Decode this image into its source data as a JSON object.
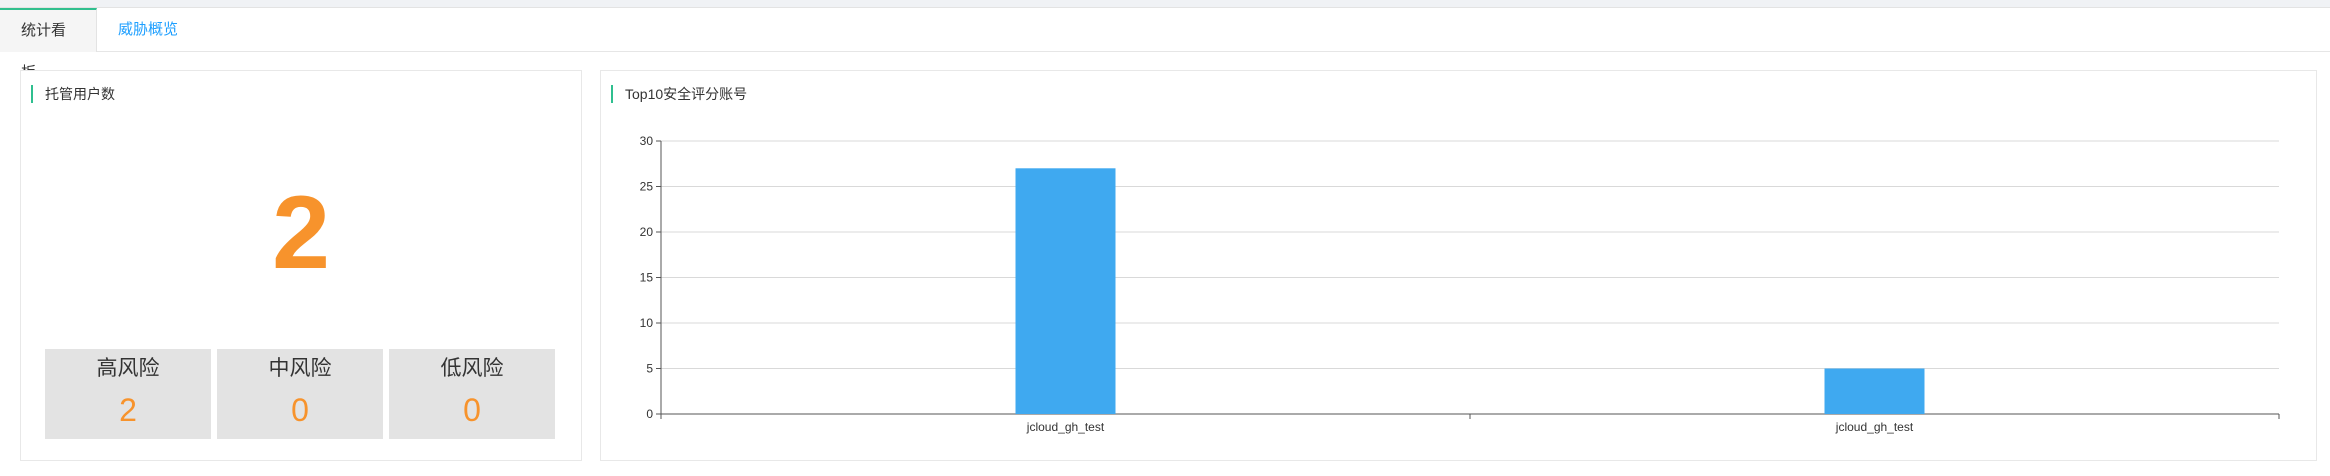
{
  "tabs": [
    {
      "label": "统计看板",
      "active": true
    },
    {
      "label": "威胁概览",
      "active": false
    }
  ],
  "users_card": {
    "title": "托管用户数",
    "total": "2",
    "risks": [
      {
        "label": "高风险",
        "value": "2"
      },
      {
        "label": "中风险",
        "value": "0"
      },
      {
        "label": "低风险",
        "value": "0"
      }
    ]
  },
  "chart_card": {
    "title": "Top10安全评分账号"
  },
  "colors": {
    "accent": "#2fbf8f",
    "orange": "#f7932c",
    "bar": "#3fa9f0",
    "link": "#1e9fff"
  },
  "chart_data": {
    "type": "bar",
    "categories": [
      "jcloud_gh_test",
      "jcloud_gh_test"
    ],
    "values": [
      27,
      5
    ],
    "title": "Top10安全评分账号",
    "xlabel": "",
    "ylabel": "",
    "ylim": [
      0,
      30
    ],
    "yticks": [
      0,
      5,
      10,
      15,
      20,
      25,
      30
    ],
    "grid": true
  }
}
